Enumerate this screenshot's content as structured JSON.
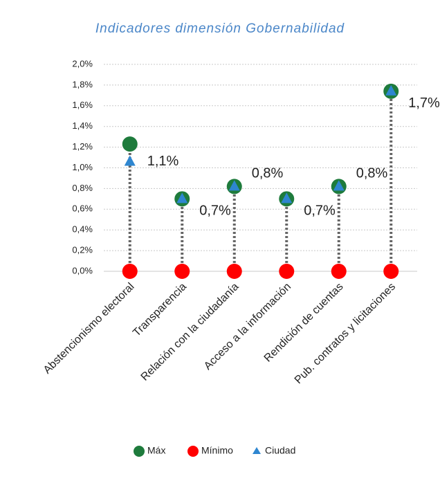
{
  "chart_data": {
    "type": "dotrange",
    "title": "Indicadores dimensión Gobernabilidad",
    "categories": [
      "Abstencionismo electoral",
      "Transparencia",
      "Relación con la ciudadanía",
      "Acceso a la información",
      "Rendición de cuentas",
      "Pub. contratos y licitaciones"
    ],
    "series": [
      {
        "name": "Máx",
        "color": "#1e7b3c",
        "marker": "circle",
        "values": [
          1.23,
          0.7,
          0.82,
          0.7,
          0.82,
          1.74
        ]
      },
      {
        "name": "Mínimo",
        "color": "#ff0000",
        "marker": "circle",
        "values": [
          0,
          0,
          0,
          0,
          0,
          0
        ]
      },
      {
        "name": "Ciudad",
        "color": "#2e86d0",
        "marker": "triangle",
        "values": [
          1.06,
          0.7,
          0.82,
          0.7,
          0.82,
          1.74
        ],
        "value_labels": [
          "1,1%",
          "0,7%",
          "0,8%",
          "0,7%",
          "0,8%",
          "1,7%"
        ]
      }
    ],
    "ylim": [
      0,
      2
    ],
    "yticks": [
      {
        "value": 0,
        "label": "0,0%"
      },
      {
        "value": 0.2,
        "label": "0,2%"
      },
      {
        "value": 0.4,
        "label": "0,4%"
      },
      {
        "value": 0.6,
        "label": "0,6%"
      },
      {
        "value": 0.8,
        "label": "0,8%"
      },
      {
        "value": 1.0,
        "label": "1,0%"
      },
      {
        "value": 1.2,
        "label": "1,2%"
      },
      {
        "value": 1.4,
        "label": "1,4%"
      },
      {
        "value": 1.6,
        "label": "1,6%"
      },
      {
        "value": 1.8,
        "label": "1,8%"
      },
      {
        "value": 2.0,
        "label": "2,0%"
      }
    ],
    "grid": true,
    "legend": "bottom"
  }
}
